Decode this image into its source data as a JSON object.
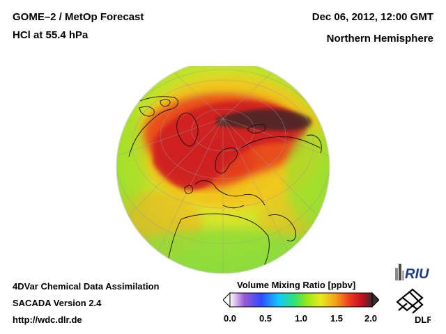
{
  "header": {
    "title": "GOME–2 / MetOp Forecast",
    "subtitle": "HCl at 55.4 hPa",
    "date": "Dec 06, 2012, 12:00 GMT",
    "region": "Northern Hemisphere"
  },
  "footer": {
    "line1": "4DVar Chemical Data Assimilation",
    "line2": "SACADA Version 2.4",
    "line3": "http://wdc.dlr.de"
  },
  "colorbar": {
    "title": "Volume Mixing Ratio [ppbv]",
    "ticks": [
      "0.0",
      "0.5",
      "1.0",
      "1.5",
      "2.0"
    ],
    "range": [
      0.0,
      2.0
    ],
    "colors": [
      "#ffffff",
      "#9b59d6",
      "#2e4bff",
      "#12c8ff",
      "#33e36a",
      "#9be51d",
      "#e9ea1e",
      "#f6a21a",
      "#ee3b20",
      "#c01020",
      "#3a2a2a"
    ]
  },
  "logos": {
    "riu": "RIU",
    "dlr": "DLR"
  }
}
